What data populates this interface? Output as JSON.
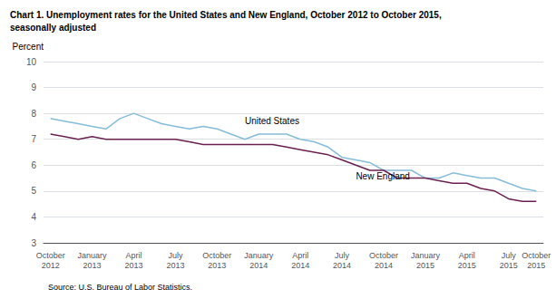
{
  "chart_data": {
    "type": "line",
    "title": "Chart 1. Unemployment rates for the United States and New England, October 2012 to October 2015,\nseasonally adjusted",
    "ylabel": "Percent",
    "source": "Source: U.S. Bureau of Labor Statistics.",
    "categories": [
      "October\n2012",
      null,
      null,
      "January\n2013",
      null,
      null,
      "April\n2013",
      null,
      null,
      "July\n2013",
      null,
      null,
      "October\n2013",
      null,
      null,
      "January\n2014",
      null,
      null,
      "April\n2014",
      null,
      null,
      "July\n2014",
      null,
      null,
      "October\n2014",
      null,
      null,
      "January\n2015",
      null,
      null,
      "April\n2015",
      null,
      null,
      "July\n2015",
      null,
      "October\n2015"
    ],
    "series": [
      {
        "name": "United States",
        "color": "#87bcd9",
        "values": [
          7.8,
          7.7,
          7.6,
          7.5,
          7.4,
          7.8,
          8.0,
          7.8,
          7.6,
          7.5,
          7.4,
          7.5,
          7.4,
          7.2,
          7.0,
          7.2,
          7.2,
          7.2,
          7.0,
          6.9,
          6.7,
          6.3,
          6.2,
          6.1,
          5.8,
          5.8,
          5.8,
          5.5,
          5.5,
          5.7,
          5.6,
          5.5,
          5.5,
          5.3,
          5.1,
          5.0
        ]
      },
      {
        "name": "New England",
        "color": "#6b2150",
        "values": [
          7.2,
          7.1,
          7.0,
          7.1,
          7.0,
          7.0,
          7.0,
          7.0,
          7.0,
          7.0,
          6.9,
          6.8,
          6.8,
          6.8,
          6.8,
          6.8,
          6.8,
          6.7,
          6.6,
          6.5,
          6.4,
          6.2,
          6.0,
          5.8,
          5.8,
          5.5,
          5.5,
          5.5,
          5.4,
          5.3,
          5.3,
          5.1,
          5.0,
          4.7,
          4.6,
          4.6
        ]
      }
    ],
    "annotations": [
      {
        "text": "United States",
        "x": 14,
        "y": 7.55
      },
      {
        "text": "New England",
        "x": 22,
        "y": 5.4
      }
    ],
    "ylim": [
      3,
      10
    ],
    "yticks": [
      3,
      4,
      5,
      6,
      7,
      8,
      9,
      10
    ],
    "grid": true
  }
}
